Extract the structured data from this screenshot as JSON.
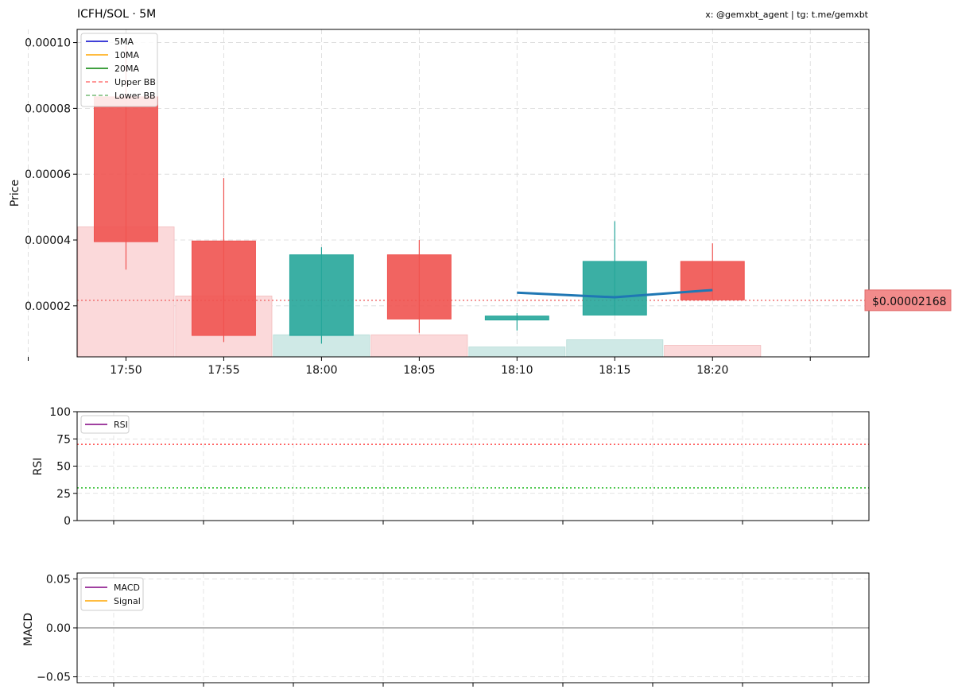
{
  "header": {
    "title": "ICFH/SOL · 5M",
    "credits": "x: @gemxbt_agent | tg: t.me/gemxbt"
  },
  "chart_data": [
    {
      "type": "candlestick",
      "ylabel": "Price",
      "ylim": [
        4.5e-06,
        0.000104
      ],
      "xlim": [
        17.5,
        25.6
      ],
      "xticks": [
        17,
        18,
        19,
        20,
        21,
        22,
        23,
        24,
        25
      ],
      "xtick_labels": [
        "",
        "17:50",
        "17:55",
        "18:00",
        "18:05",
        "18:10",
        "18:15",
        "18:20",
        ""
      ],
      "ytick_values": [
        2e-05,
        4e-05,
        6e-05,
        8e-05,
        0.0001
      ],
      "ytick_labels": [
        "0.00002",
        "0.00004",
        "0.00006",
        "0.00008",
        "0.00010"
      ],
      "grid": true,
      "candles": [
        {
          "time": "17:50",
          "open": 8.35e-05,
          "high": 9.9e-05,
          "low": 3.1e-05,
          "close": 3.95e-05
        },
        {
          "time": "17:55",
          "open": 3.97e-05,
          "high": 5.88e-05,
          "low": 9e-06,
          "close": 1.1e-05
        },
        {
          "time": "18:00",
          "open": 1.1e-05,
          "high": 3.78e-05,
          "low": 8.5e-06,
          "close": 3.55e-05
        },
        {
          "time": "18:05",
          "open": 3.55e-05,
          "high": 4e-05,
          "low": 1.18e-05,
          "close": 1.6e-05
        },
        {
          "time": "18:10",
          "open": 1.57e-05,
          "high": 1.78e-05,
          "low": 1.25e-05,
          "close": 1.69e-05
        },
        {
          "time": "18:15",
          "open": 1.72e-05,
          "high": 4.57e-05,
          "low": 1.72e-05,
          "close": 3.35e-05
        },
        {
          "time": "18:20",
          "open": 3.35e-05,
          "high": 3.9e-05,
          "low": 2.18e-05,
          "close": 2.18e-05
        }
      ],
      "volume": [
        {
          "time": "17:50",
          "level": 4.4e-05,
          "direction": "down"
        },
        {
          "time": "17:55",
          "level": 2.3e-05,
          "direction": "down"
        },
        {
          "time": "18:00",
          "level": 1.12e-05,
          "direction": "up"
        },
        {
          "time": "18:05",
          "level": 1.12e-05,
          "direction": "down"
        },
        {
          "time": "18:10",
          "level": 7.5e-06,
          "direction": "up"
        },
        {
          "time": "18:15",
          "level": 9.7e-06,
          "direction": "up"
        },
        {
          "time": "18:20",
          "level": 8e-06,
          "direction": "down"
        }
      ],
      "ma5": [
        {
          "time": "18:10",
          "value": 2.4e-05
        },
        {
          "time": "18:15",
          "value": 2.26e-05
        },
        {
          "time": "18:20",
          "value": 2.48e-05
        }
      ],
      "current_price": 2.168e-05,
      "current_price_label": "$0.00002168",
      "legend": {
        "placement": "upper-left",
        "items": [
          {
            "label": "5MA",
            "color": "#0000cc",
            "style": "solid"
          },
          {
            "label": "10MA",
            "color": "#ffa500",
            "style": "solid"
          },
          {
            "label": "20MA",
            "color": "#008000",
            "style": "solid"
          },
          {
            "label": "Upper BB",
            "color": "#ff7777",
            "style": "dashed"
          },
          {
            "label": "Lower BB",
            "color": "#77bb77",
            "style": "dashed"
          }
        ]
      },
      "colors": {
        "up": "#26a69a",
        "down": "#ef5350",
        "up_volume": "#cfe9e6",
        "down_volume": "#fbd9da",
        "ma5_line": "#1f77b4",
        "price_line": "#ef5350"
      }
    },
    {
      "type": "line",
      "ylabel": "RSI",
      "ylim": [
        0,
        100
      ],
      "ytick_values": [
        0,
        25,
        50,
        75,
        100
      ],
      "ytick_labels": [
        "0",
        "25",
        "50",
        "75",
        "100"
      ],
      "reference_lines": [
        {
          "value": 70,
          "color": "#ff4444"
        },
        {
          "value": 30,
          "color": "#22bb22"
        }
      ],
      "legend": {
        "placement": "upper-left",
        "items": [
          {
            "label": "RSI",
            "color": "#800080",
            "style": "solid"
          }
        ]
      },
      "grid": true
    },
    {
      "type": "line",
      "ylabel": "MACD",
      "ylim": [
        -0.056,
        0.056
      ],
      "ytick_values": [
        0.05,
        0,
        -0.05
      ],
      "ytick_labels": [
        "0.05",
        "0.00",
        "−0.05"
      ],
      "reference_lines": [
        {
          "value": 0,
          "color": "#9e9e9e"
        }
      ],
      "legend": {
        "placement": "upper-left",
        "items": [
          {
            "label": "MACD",
            "color": "#800080",
            "style": "solid"
          },
          {
            "label": "Signal",
            "color": "#ffa500",
            "style": "solid"
          }
        ]
      },
      "grid": true
    }
  ]
}
